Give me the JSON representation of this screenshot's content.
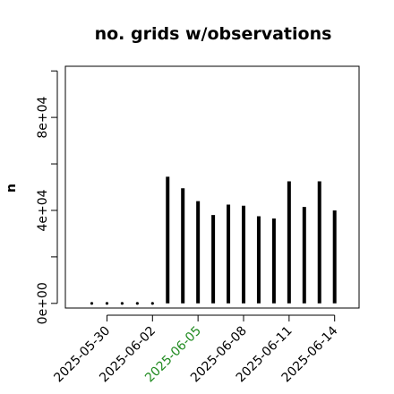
{
  "chart_data": {
    "type": "bar",
    "title": "no. grids w/observations",
    "ylabel": "n",
    "xlabel": "",
    "ylim": [
      -2000,
      102000
    ],
    "yticks": [
      0,
      40000,
      80000
    ],
    "ytick_labels": [
      "0e+00",
      "4e+04",
      "8e+04"
    ],
    "grid": false,
    "bar_style": "vertical lines",
    "x": [
      "2025-05-29",
      "2025-05-30",
      "2025-05-31",
      "2025-06-01",
      "2025-06-02",
      "2025-06-03",
      "2025-06-04",
      "2025-06-05",
      "2025-06-06",
      "2025-06-07",
      "2025-06-08",
      "2025-06-09",
      "2025-06-10",
      "2025-06-11",
      "2025-06-12",
      "2025-06-13",
      "2025-06-14"
    ],
    "values": [
      0,
      0,
      0,
      0,
      0,
      54500,
      49500,
      44000,
      38000,
      42500,
      42000,
      37500,
      36500,
      52500,
      41500,
      52500,
      40000
    ],
    "xticks": [
      "2025-05-30",
      "2025-06-02",
      "2025-06-05",
      "2025-06-08",
      "2025-06-11",
      "2025-06-14"
    ],
    "xtick_colors": [
      "#000000",
      "#000000",
      "#228B22",
      "#000000",
      "#000000",
      "#000000"
    ],
    "colors": {
      "bars": "#000000",
      "axis": "#000000",
      "frame": "#000000"
    }
  }
}
